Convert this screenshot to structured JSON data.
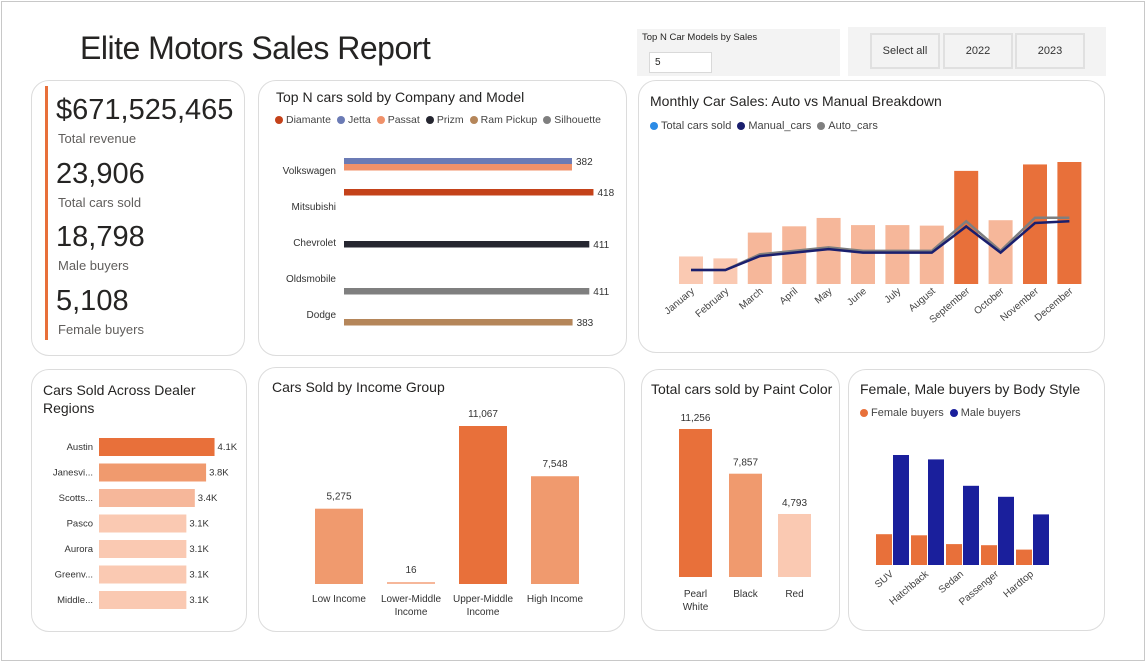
{
  "report_title": "Elite Motors Sales Report",
  "slicer_topn": {
    "label": "Top N Car Models by Sales",
    "value": "5"
  },
  "year_slicer": {
    "options": [
      "Select all",
      "2022",
      "2023"
    ]
  },
  "kpis": [
    {
      "value": "$671,525,465",
      "label": "Total revenue"
    },
    {
      "value": "23,906",
      "label": "Total cars sold"
    },
    {
      "value": "18,798",
      "label": "Male buyers"
    },
    {
      "value": "5,108",
      "label": "Female buyers"
    }
  ],
  "colors": {
    "accent": "#e8703a",
    "mid": "#f09a6e",
    "light": "#f6b79a",
    "pale": "#fac9b2",
    "navy": "#1a1f9c",
    "gray_line": "#7f7f7f",
    "blue_dot": "#2b8be6"
  },
  "chart_data": [
    {
      "id": "topn",
      "type": "bar",
      "orientation": "horizontal",
      "title": "Top N cars sold by Company and Model",
      "legend": [
        {
          "name": "Diamante",
          "color": "#c4421a"
        },
        {
          "name": "Jetta",
          "color": "#6b7bb5"
        },
        {
          "name": "Passat",
          "color": "#f0916a"
        },
        {
          "name": "Prizm",
          "color": "#252630"
        },
        {
          "name": "Ram Pickup",
          "color": "#b5865a"
        },
        {
          "name": "Silhouette",
          "color": "#7f7f7f"
        }
      ],
      "categories": [
        "Volkswagen",
        "Mitsubishi",
        "Chevrolet",
        "Oldsmobile",
        "Dodge"
      ],
      "bars": [
        {
          "company": "Volkswagen",
          "model": "Jetta",
          "value": 382,
          "label": "382"
        },
        {
          "company": "Volkswagen",
          "model": "Passat",
          "value": 382,
          "label": ""
        },
        {
          "company": "Mitsubishi",
          "model": "Diamante",
          "value": 418,
          "label": "418"
        },
        {
          "company": "Chevrolet",
          "model": "Prizm",
          "value": 411,
          "label": "411"
        },
        {
          "company": "Oldsmobile",
          "model": "Silhouette",
          "value": 411,
          "label": "411"
        },
        {
          "company": "Dodge",
          "model": "Ram Pickup",
          "value": 383,
          "label": "383"
        }
      ]
    },
    {
      "id": "monthly",
      "type": "bar",
      "title": "Monthly Car Sales: Auto vs Manual Breakdown",
      "legend": [
        {
          "name": "Total cars sold",
          "color": "#2b8be6"
        },
        {
          "name": "Manual_cars",
          "color": "#1a1f6e"
        },
        {
          "name": "Auto_cars",
          "color": "#7f7f7f"
        }
      ],
      "categories": [
        "January",
        "February",
        "March",
        "April",
        "May",
        "June",
        "July",
        "August",
        "September",
        "October",
        "November",
        "December"
      ],
      "series": [
        {
          "name": "Total cars sold",
          "values": [
            790,
            735,
            1475,
            1655,
            1895,
            1690,
            1690,
            1675,
            3245,
            1830,
            3430,
            3500
          ]
        },
        {
          "name": "Manual_cars",
          "values": [
            400,
            400,
            800,
            900,
            1000,
            900,
            900,
            900,
            1650,
            900,
            1750,
            1800
          ]
        },
        {
          "name": "Auto_cars",
          "values": [
            400,
            400,
            850,
            950,
            1050,
            950,
            950,
            950,
            1800,
            950,
            1900,
            1900
          ]
        }
      ]
    },
    {
      "id": "regions",
      "type": "bar",
      "orientation": "horizontal",
      "title": "Cars Sold Across Dealer Regions",
      "categories": [
        "Austin",
        "Janesvi...",
        "Scotts...",
        "Pasco",
        "Aurora",
        "Greenv...",
        "Middle..."
      ],
      "values": [
        4100,
        3800,
        3400,
        3100,
        3100,
        3100,
        3100
      ],
      "labels": [
        "4.1K",
        "3.8K",
        "3.4K",
        "3.1K",
        "3.1K",
        "3.1K",
        "3.1K"
      ]
    },
    {
      "id": "income",
      "type": "bar",
      "title": "Cars Sold by Income Group",
      "categories": [
        [
          "Low Income"
        ],
        [
          "Lower-Middle",
          "Income"
        ],
        [
          "Upper-Middle",
          "Income"
        ],
        [
          "High Income"
        ]
      ],
      "values": [
        5275,
        16,
        11067,
        7548
      ],
      "labels": [
        "5,275",
        "16",
        "11,067",
        "7,548"
      ]
    },
    {
      "id": "paint",
      "type": "bar",
      "title": "Total cars sold by Paint Color",
      "categories": [
        [
          "Pearl",
          "White"
        ],
        [
          "Black"
        ],
        [
          "Red"
        ]
      ],
      "values": [
        11256,
        7857,
        4793
      ],
      "labels": [
        "11,256",
        "7,857",
        "4,793"
      ]
    },
    {
      "id": "body",
      "type": "bar",
      "title": "Female, Male buyers by Body Style",
      "legend": [
        {
          "name": "Female buyers",
          "color": "#e8703a"
        },
        {
          "name": "Male buyers",
          "color": "#1a1f9c"
        }
      ],
      "categories": [
        "SUV",
        "Hatchback",
        "Sedan",
        "Passenger",
        "Hardtop"
      ],
      "series": [
        {
          "name": "Female buyers",
          "values": [
            1400,
            1350,
            950,
            900,
            700
          ]
        },
        {
          "name": "Male buyers",
          "values": [
            5000,
            4800,
            3600,
            3100,
            2300
          ]
        }
      ]
    }
  ]
}
